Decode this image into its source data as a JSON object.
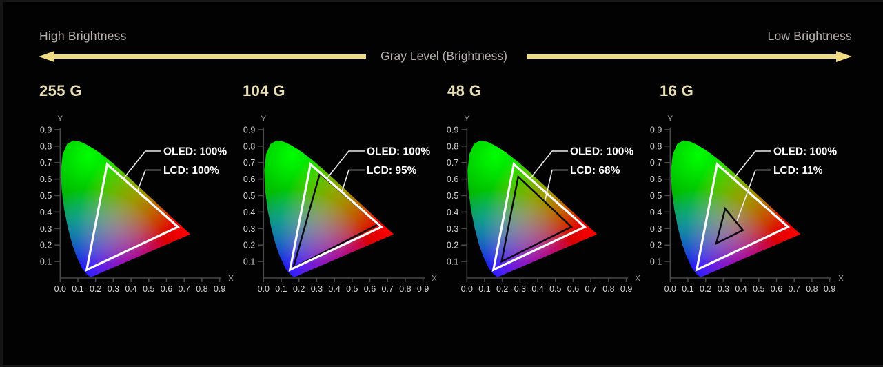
{
  "header": {
    "left_label": "High Brightness",
    "center_label": "Gray Level (Brightness)",
    "right_label": "Low Brightness",
    "arrow_color": "#efdb84",
    "label_color": "#b6b3af"
  },
  "section_title_color": "#e9dfb4",
  "chart_data": {
    "type": "scatter",
    "subtype": "cie-1931-chromaticity-gamut-comparison",
    "x_axis_label": "X",
    "y_axis_label": "Y",
    "x_ticks": [
      "0.0",
      "0.1",
      "0.2",
      "0.3",
      "0.4",
      "0.5",
      "0.6",
      "0.7",
      "0.8",
      "0.9"
    ],
    "y_ticks": [
      "0.1",
      "0.2",
      "0.3",
      "0.4",
      "0.5",
      "0.6",
      "0.7",
      "0.8",
      "0.9"
    ],
    "xlim": [
      0,
      0.95
    ],
    "ylim": [
      0,
      0.95
    ],
    "grid": false,
    "charts": [
      {
        "title": "255 G",
        "series": [
          {
            "name": "OLED",
            "label": "OLED: 100%",
            "coverage_percent": 100,
            "stroke": "#ffffff",
            "vertices": [
              [
                0.265,
                0.69
              ],
              [
                0.665,
                0.31
              ],
              [
                0.15,
                0.05
              ]
            ],
            "leader_end": [
              0.355,
              0.6
            ]
          },
          {
            "name": "LCD",
            "label": "LCD: 100%",
            "coverage_percent": 100,
            "stroke": "#ffffff",
            "vertices": [
              [
                0.265,
                0.69
              ],
              [
                0.665,
                0.31
              ],
              [
                0.15,
                0.05
              ]
            ],
            "leader_end": [
              0.435,
              0.525
            ]
          }
        ]
      },
      {
        "title": "104 G",
        "series": [
          {
            "name": "OLED",
            "label": "OLED: 100%",
            "coverage_percent": 100,
            "stroke": "#ffffff",
            "vertices": [
              [
                0.265,
                0.69
              ],
              [
                0.665,
                0.31
              ],
              [
                0.15,
                0.05
              ]
            ],
            "leader_end": [
              0.355,
              0.6
            ]
          },
          {
            "name": "LCD",
            "label": "LCD: 95%",
            "coverage_percent": 95,
            "stroke": "#0a0a10",
            "vertices": [
              [
                0.318,
                0.634
              ],
              [
                0.648,
                0.325
              ],
              [
                0.168,
                0.062
              ]
            ],
            "leader_end": [
              0.44,
              0.516
            ]
          }
        ]
      },
      {
        "title": "48 G",
        "series": [
          {
            "name": "OLED",
            "label": "OLED: 100%",
            "coverage_percent": 100,
            "stroke": "#ffffff",
            "vertices": [
              [
                0.265,
                0.69
              ],
              [
                0.665,
                0.31
              ],
              [
                0.15,
                0.05
              ]
            ],
            "leader_end": [
              0.355,
              0.6
            ]
          },
          {
            "name": "LCD",
            "label": "LCD: 68%",
            "coverage_percent": 68,
            "stroke": "#0a0a10",
            "vertices": [
              [
                0.29,
                0.615
              ],
              [
                0.59,
                0.31
              ],
              [
                0.196,
                0.1
              ]
            ],
            "leader_end": [
              0.44,
              0.465
            ]
          }
        ]
      },
      {
        "title": "16 G",
        "series": [
          {
            "name": "OLED",
            "label": "OLED: 100%",
            "coverage_percent": 100,
            "stroke": "#ffffff",
            "vertices": [
              [
                0.265,
                0.69
              ],
              [
                0.665,
                0.31
              ],
              [
                0.15,
                0.05
              ]
            ],
            "leader_end": [
              0.355,
              0.6
            ]
          },
          {
            "name": "LCD",
            "label": "LCD: 11%",
            "coverage_percent": 11,
            "stroke": "#0a0a10",
            "vertices": [
              [
                0.31,
                0.42
              ],
              [
                0.41,
                0.29
              ],
              [
                0.26,
                0.21
              ]
            ],
            "leader_end": [
              0.378,
              0.348
            ]
          }
        ]
      }
    ],
    "style": {
      "axis_color": "#474747",
      "tick_label_color": "#d6d6d6",
      "axis_letter_color": "#9a9a9a",
      "series_label_color": "#ffffff",
      "leader_color": "#ededed"
    }
  }
}
